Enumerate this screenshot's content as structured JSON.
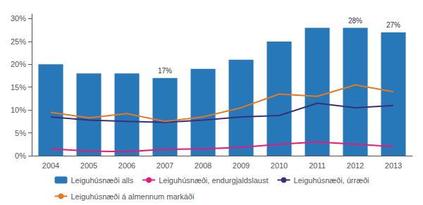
{
  "chart_data": {
    "type": "bar",
    "categories": [
      "2004",
      "2005",
      "2006",
      "2007",
      "2008",
      "2009",
      "2010",
      "2011",
      "2012",
      "2013"
    ],
    "series": [
      {
        "name": "Leiguhúsnæði alls",
        "type": "bar",
        "color": "#2778B8",
        "values": [
          20,
          18,
          18,
          17,
          19,
          21,
          25,
          28,
          28,
          27
        ],
        "data_labels": true,
        "value_labels": [
          null,
          null,
          null,
          "17%",
          null,
          null,
          null,
          null,
          "28%",
          "27%"
        ]
      },
      {
        "name": "Leiguhúsnæði, endurgjaldslaust",
        "type": "line",
        "color": "#E8197A",
        "values": [
          1.5,
          1.0,
          0.9,
          1.4,
          1.5,
          1.8,
          2.5,
          3.0,
          2.5,
          2.0
        ]
      },
      {
        "name": "Leiguhúsnæði, úrræði",
        "type": "line",
        "color": "#3B2F7A",
        "values": [
          8.5,
          7.8,
          7.5,
          7.3,
          7.8,
          8.5,
          8.8,
          11.5,
          10.5,
          11.0
        ]
      },
      {
        "name": "Leiguhúsnæði á almennum markáði",
        "type": "line",
        "color": "#E87722",
        "values": [
          9.5,
          8.3,
          9.2,
          7.5,
          8.5,
          10.5,
          13.5,
          13.0,
          15.5,
          14.0
        ]
      }
    ],
    "ylim": [
      0,
      31
    ],
    "yticks": [
      {
        "value": 0,
        "label": "0%"
      },
      {
        "value": 5,
        "label": "5%"
      },
      {
        "value": 10,
        "label": "10%"
      },
      {
        "value": 15,
        "label": "15%"
      },
      {
        "value": 20,
        "label": "20%"
      },
      {
        "value": 25,
        "label": "25%"
      },
      {
        "value": 30,
        "label": "30%"
      }
    ],
    "grid": false,
    "legend": "bottom"
  }
}
